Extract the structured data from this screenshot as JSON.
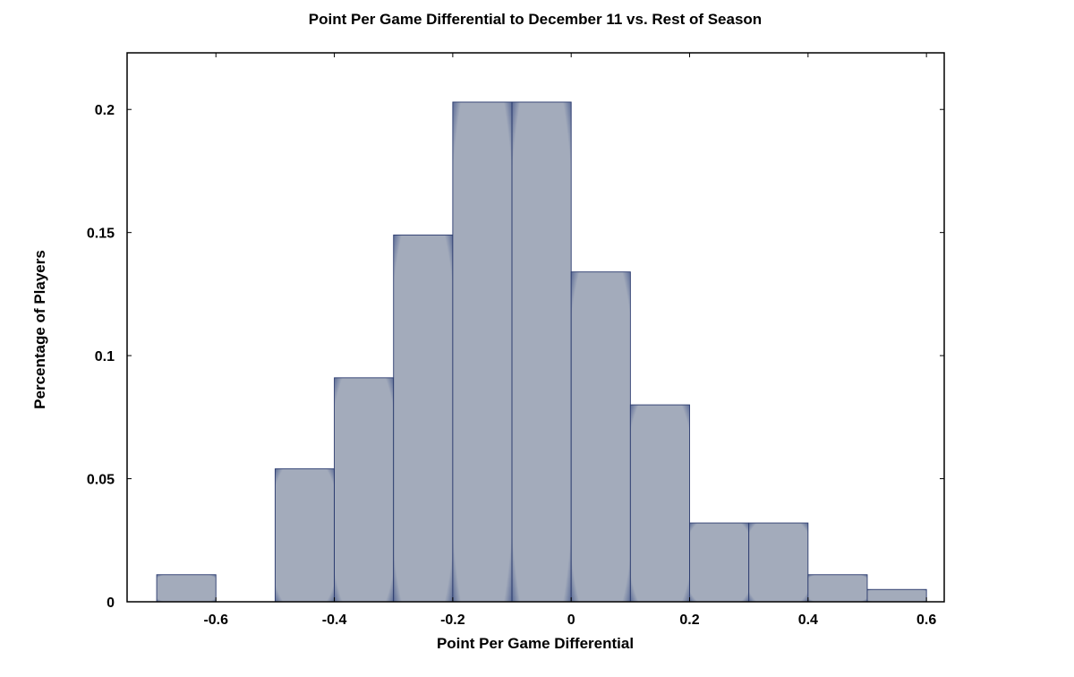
{
  "chart_data": {
    "type": "bar",
    "title": "Point Per Game Differential to December 11 vs. Rest of Season",
    "xlabel": "Point Per Game Differential",
    "ylabel": "Percentage of Players",
    "xlim": [
      -0.75,
      0.63
    ],
    "ylim": [
      0,
      0.223
    ],
    "x_ticks": [
      -0.6,
      -0.4,
      -0.2,
      0,
      0.2,
      0.4,
      0.6
    ],
    "x_tick_labels": [
      "-0.6",
      "-0.4",
      "-0.2",
      "0",
      "0.2",
      "0.4",
      "0.6"
    ],
    "y_ticks": [
      0,
      0.05,
      0.1,
      0.15,
      0.2
    ],
    "y_tick_labels": [
      "0",
      "0.05",
      "0.1",
      "0.15",
      "0.2"
    ],
    "bin_edges": [
      -0.7,
      -0.6,
      -0.5,
      -0.4,
      -0.3,
      -0.2,
      -0.1,
      0,
      0.1,
      0.2,
      0.3,
      0.4,
      0.5,
      0.6
    ],
    "values": [
      0.011,
      0,
      0.054,
      0.091,
      0.149,
      0.203,
      0.203,
      0.134,
      0.08,
      0.032,
      0.032,
      0.011,
      0.005
    ],
    "bar_color": "#a0a8b8",
    "bar_edge_color": "#2a3a6e",
    "grid": false,
    "legend": false
  }
}
